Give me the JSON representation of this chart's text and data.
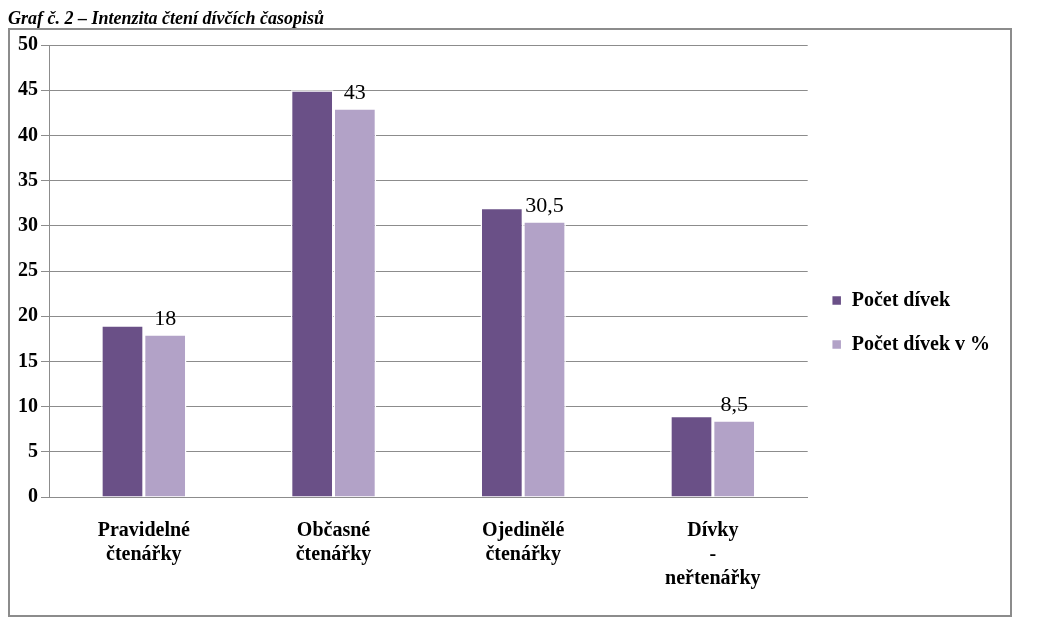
{
  "chart_data": {
    "type": "bar",
    "title": "Graf č. 2 – Intenzita čtení dívčích časopisů",
    "categories": [
      "Pravidelné čtenářky",
      "Občasné čtenářky",
      "Ojedinělé čtenářky",
      "Dívky - neřtenářky"
    ],
    "series": [
      {
        "name": "Počet dívek",
        "color": "#6a5087",
        "values": [
          19,
          45,
          32,
          9
        ]
      },
      {
        "name": "Počet dívek v %",
        "color": "#b2a2c7",
        "values": [
          18,
          43,
          30.5,
          8.5
        ],
        "value_labels": [
          "18",
          "43",
          "30,5",
          "8,5"
        ]
      }
    ],
    "ylim": [
      0,
      50
    ],
    "yticks": [
      0,
      5,
      10,
      15,
      20,
      25,
      30,
      35,
      40,
      45,
      50
    ],
    "grid": "y",
    "legend": "right"
  }
}
